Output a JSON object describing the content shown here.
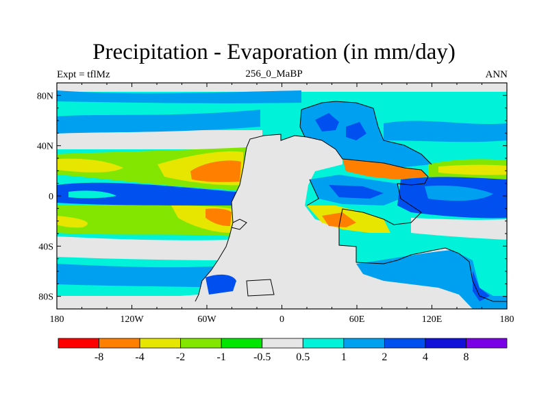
{
  "title": "Precipitation - Evaporation (in mm/day)",
  "subtitle_left": "Expt = tflMz",
  "subtitle_center": "256_0_MaBP",
  "subtitle_right": "ANN",
  "map": {
    "lon_range": [
      -180,
      180
    ],
    "lat_range": [
      -90,
      90
    ],
    "y_ticks": [
      "80N",
      "40N",
      "0",
      "40S",
      "80S"
    ],
    "y_tick_values": [
      80,
      40,
      0,
      -40,
      -80
    ],
    "x_ticks": [
      "180",
      "120W",
      "60W",
      "0",
      "60E",
      "120E",
      "180"
    ],
    "x_tick_values": [
      -180,
      -120,
      -60,
      0,
      60,
      120,
      180
    ]
  },
  "colorbar": {
    "colors": [
      "#ff0000",
      "#ff7f00",
      "#e6e600",
      "#82e600",
      "#00e600",
      "#e6e6e6",
      "#00f2d9",
      "#00a0f0",
      "#0050f0",
      "#1010d8",
      "#7a00e6"
    ],
    "labels": [
      "-8",
      "-4",
      "-2",
      "-1",
      "-0.5",
      "0.5",
      "1",
      "2",
      "4",
      "8"
    ]
  }
}
